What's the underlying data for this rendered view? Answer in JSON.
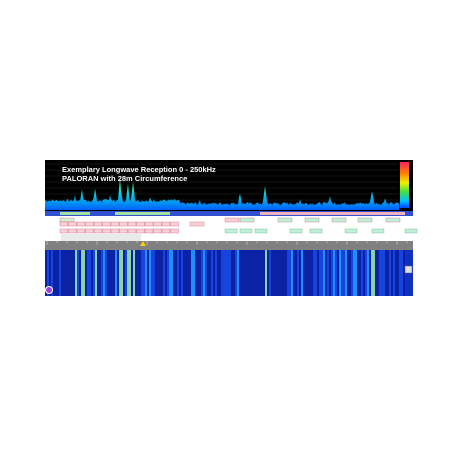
{
  "header": {
    "title": "Exemplary Longwave Reception 0 - 250kHz",
    "subtitle": "PALORAN with 28m Circumference"
  }
}
